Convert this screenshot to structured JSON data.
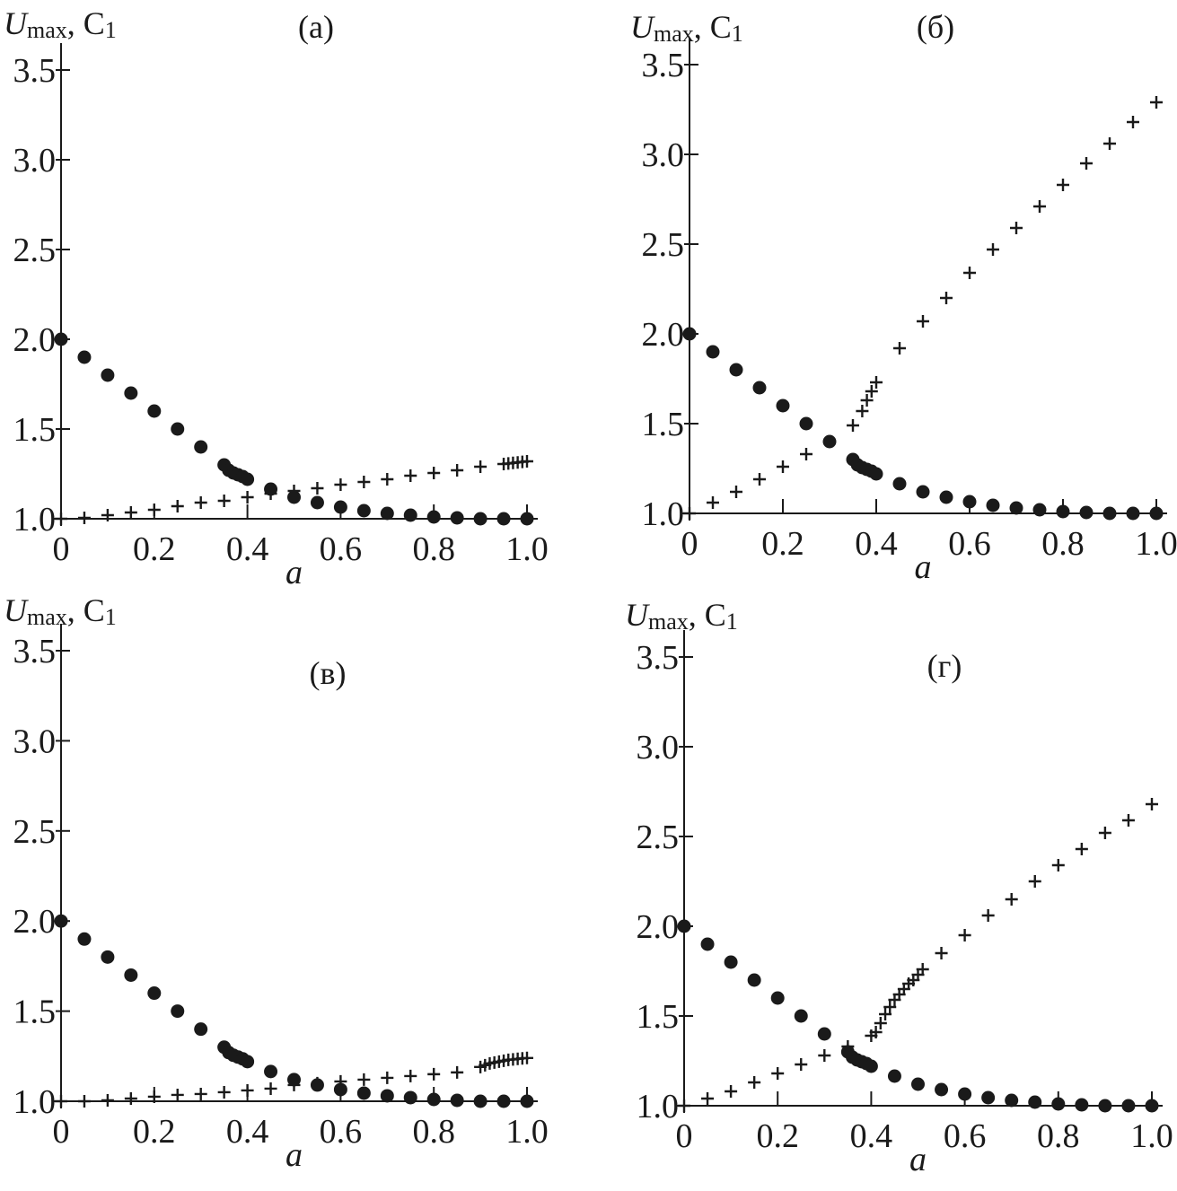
{
  "chart_data": [
    {
      "type": "scatter",
      "title": "(а)",
      "xlabel": "a",
      "ylabel": {
        "main": "U",
        "sub": "max",
        "sep": ", C",
        "sub2": "1"
      },
      "xlim": [
        0,
        1.0
      ],
      "ylim": [
        1.0,
        3.5
      ],
      "xticks": [
        "0",
        "0.2",
        "0.4",
        "0.6",
        "0.8",
        "1.0"
      ],
      "yticks": [
        "1.0",
        "1.5",
        "2.0",
        "2.5",
        "3.0",
        "3.5"
      ],
      "series": [
        {
          "name": "Umax",
          "marker": "circle",
          "x": [
            0,
            0.05,
            0.1,
            0.15,
            0.2,
            0.25,
            0.3,
            0.35,
            0.36,
            0.37,
            0.38,
            0.39,
            0.4,
            0.45,
            0.5,
            0.55,
            0.6,
            0.65,
            0.7,
            0.75,
            0.8,
            0.85,
            0.9,
            0.95,
            1.0
          ],
          "y": [
            2.0,
            1.9,
            1.8,
            1.7,
            1.6,
            1.5,
            1.4,
            1.3,
            1.27,
            1.255,
            1.245,
            1.235,
            1.22,
            1.165,
            1.12,
            1.09,
            1.065,
            1.045,
            1.03,
            1.02,
            1.01,
            1.005,
            1.0,
            1.0,
            1.0
          ]
        },
        {
          "name": "C1",
          "marker": "plus",
          "x": [
            0,
            0.05,
            0.1,
            0.15,
            0.2,
            0.25,
            0.3,
            0.35,
            0.4,
            0.45,
            0.5,
            0.55,
            0.6,
            0.65,
            0.7,
            0.75,
            0.8,
            0.85,
            0.9,
            0.95,
            0.96,
            0.97,
            0.98,
            0.99,
            1.0
          ],
          "y": [
            1.0,
            1.005,
            1.02,
            1.035,
            1.05,
            1.07,
            1.09,
            1.1,
            1.12,
            1.14,
            1.155,
            1.17,
            1.19,
            1.205,
            1.22,
            1.24,
            1.255,
            1.27,
            1.29,
            1.305,
            1.308,
            1.311,
            1.314,
            1.317,
            1.32
          ]
        }
      ]
    },
    {
      "type": "scatter",
      "title": "(б)",
      "xlabel": "a",
      "ylabel": {
        "main": "U",
        "sub": "max",
        "sep": ", C",
        "sub2": "1"
      },
      "xlim": [
        0,
        1.0
      ],
      "ylim": [
        1.0,
        3.5
      ],
      "xticks": [
        "0",
        "0.2",
        "0.4",
        "0.6",
        "0.8",
        "1.0"
      ],
      "yticks": [
        "1.0",
        "1.5",
        "2.0",
        "2.5",
        "3.0",
        "3.5"
      ],
      "series": [
        {
          "name": "Umax",
          "marker": "circle",
          "x": [
            0,
            0.05,
            0.1,
            0.15,
            0.2,
            0.25,
            0.3,
            0.35,
            0.36,
            0.37,
            0.38,
            0.39,
            0.4,
            0.45,
            0.5,
            0.55,
            0.6,
            0.65,
            0.7,
            0.75,
            0.8,
            0.85,
            0.9,
            0.95,
            1.0
          ],
          "y": [
            2.0,
            1.9,
            1.8,
            1.7,
            1.6,
            1.5,
            1.4,
            1.3,
            1.27,
            1.255,
            1.245,
            1.235,
            1.22,
            1.165,
            1.12,
            1.09,
            1.065,
            1.045,
            1.03,
            1.02,
            1.01,
            1.005,
            1.0,
            1.0,
            1.0
          ]
        },
        {
          "name": "C1",
          "marker": "plus",
          "x": [
            0,
            0.05,
            0.1,
            0.15,
            0.2,
            0.25,
            0.3,
            0.35,
            0.37,
            0.38,
            0.39,
            0.4,
            0.45,
            0.5,
            0.55,
            0.6,
            0.65,
            0.7,
            0.75,
            0.8,
            0.85,
            0.9,
            0.95,
            1.0
          ],
          "y": [
            1.0,
            1.06,
            1.12,
            1.19,
            1.26,
            1.33,
            1.4,
            1.49,
            1.57,
            1.63,
            1.68,
            1.73,
            1.92,
            2.07,
            2.2,
            2.34,
            2.47,
            2.59,
            2.71,
            2.83,
            2.95,
            3.06,
            3.18,
            3.29
          ]
        }
      ]
    },
    {
      "type": "scatter",
      "title": "(в)",
      "xlabel": "a",
      "ylabel": {
        "main": "U",
        "sub": "max",
        "sep": ", C",
        "sub2": "1"
      },
      "xlim": [
        0,
        1.0
      ],
      "ylim": [
        1.0,
        3.5
      ],
      "xticks": [
        "0",
        "0.2",
        "0.4",
        "0.6",
        "0.8",
        "1.0"
      ],
      "yticks": [
        "1.0",
        "1.5",
        "2.0",
        "2.5",
        "3.0",
        "3.5"
      ],
      "series": [
        {
          "name": "Umax",
          "marker": "circle",
          "x": [
            0,
            0.05,
            0.1,
            0.15,
            0.2,
            0.25,
            0.3,
            0.35,
            0.36,
            0.37,
            0.38,
            0.39,
            0.4,
            0.45,
            0.5,
            0.55,
            0.6,
            0.65,
            0.7,
            0.75,
            0.8,
            0.85,
            0.9,
            0.95,
            1.0
          ],
          "y": [
            2.0,
            1.9,
            1.8,
            1.7,
            1.6,
            1.5,
            1.4,
            1.3,
            1.27,
            1.255,
            1.245,
            1.235,
            1.22,
            1.165,
            1.12,
            1.09,
            1.065,
            1.045,
            1.03,
            1.02,
            1.01,
            1.005,
            1.0,
            1.0,
            1.0
          ]
        },
        {
          "name": "C1",
          "marker": "plus",
          "x": [
            0,
            0.05,
            0.1,
            0.15,
            0.2,
            0.25,
            0.3,
            0.35,
            0.4,
            0.45,
            0.5,
            0.55,
            0.6,
            0.65,
            0.7,
            0.75,
            0.8,
            0.85,
            0.9,
            0.91,
            0.92,
            0.93,
            0.94,
            0.95,
            0.96,
            0.97,
            0.98,
            0.99,
            1.0
          ],
          "y": [
            1.0,
            1.0,
            1.005,
            1.015,
            1.025,
            1.035,
            1.04,
            1.05,
            1.06,
            1.07,
            1.09,
            1.1,
            1.11,
            1.12,
            1.13,
            1.14,
            1.15,
            1.16,
            1.19,
            1.2,
            1.21,
            1.215,
            1.22,
            1.225,
            1.23,
            1.232,
            1.235,
            1.238,
            1.24
          ]
        }
      ]
    },
    {
      "type": "scatter",
      "title": "(г)",
      "xlabel": "a",
      "ylabel": {
        "main": "U",
        "sub": "max",
        "sep": ", C",
        "sub2": "1"
      },
      "xlim": [
        0,
        1.0
      ],
      "ylim": [
        1.0,
        3.5
      ],
      "xticks": [
        "0",
        "0.2",
        "0.4",
        "0.6",
        "0.8",
        "1.0"
      ],
      "yticks": [
        "1.0",
        "1.5",
        "2.0",
        "2.5",
        "3.0",
        "3.5"
      ],
      "series": [
        {
          "name": "Umax",
          "marker": "circle",
          "x": [
            0,
            0.05,
            0.1,
            0.15,
            0.2,
            0.25,
            0.3,
            0.35,
            0.36,
            0.37,
            0.38,
            0.39,
            0.4,
            0.45,
            0.5,
            0.55,
            0.6,
            0.65,
            0.7,
            0.75,
            0.8,
            0.85,
            0.9,
            0.95,
            1.0
          ],
          "y": [
            2.0,
            1.9,
            1.8,
            1.7,
            1.6,
            1.5,
            1.4,
            1.3,
            1.27,
            1.255,
            1.245,
            1.235,
            1.22,
            1.165,
            1.12,
            1.09,
            1.065,
            1.045,
            1.03,
            1.02,
            1.01,
            1.005,
            1.0,
            1.0,
            1.0
          ]
        },
        {
          "name": "C1",
          "marker": "plus",
          "x": [
            0,
            0.05,
            0.1,
            0.15,
            0.2,
            0.25,
            0.3,
            0.35,
            0.4,
            0.41,
            0.42,
            0.43,
            0.44,
            0.45,
            0.46,
            0.47,
            0.48,
            0.49,
            0.5,
            0.51,
            0.55,
            0.6,
            0.65,
            0.7,
            0.75,
            0.8,
            0.85,
            0.9,
            0.95,
            1.0
          ],
          "y": [
            1.0,
            1.04,
            1.08,
            1.13,
            1.18,
            1.23,
            1.28,
            1.33,
            1.39,
            1.41,
            1.46,
            1.51,
            1.55,
            1.59,
            1.62,
            1.65,
            1.68,
            1.7,
            1.73,
            1.76,
            1.85,
            1.95,
            2.06,
            2.15,
            2.25,
            2.34,
            2.43,
            2.52,
            2.59,
            2.68
          ]
        }
      ]
    }
  ]
}
